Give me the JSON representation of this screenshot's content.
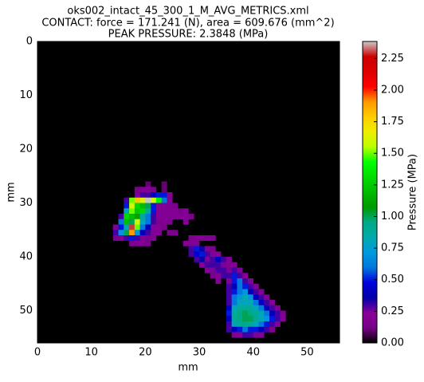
{
  "chart_data": {
    "type": "heatmap",
    "title": "oks002_intact_45_300_1_M_AVG_METRICS.xml",
    "subtitle": "CONTACT: force = 171.241 (N), area = 609.676 (mm^2)",
    "annotation": "PEAK PRESSURE: 2.3848 (MPa)",
    "x_label": "mm",
    "y_label": "mm",
    "xlim": [
      0,
      56
    ],
    "ylim": [
      56,
      0
    ],
    "xticks": [
      0,
      10,
      20,
      30,
      40,
      50
    ],
    "yticks": [
      0,
      10,
      20,
      30,
      40,
      50
    ],
    "colormap": "nipy_spectral",
    "colorbar": {
      "label": "Pressure (MPa)",
      "lim": [
        0,
        2.3848
      ],
      "ticks": [
        {
          "value": 0,
          "label": "0.00"
        },
        {
          "value": 0.25,
          "label": "0.25"
        },
        {
          "value": 0.5,
          "label": "0.50"
        },
        {
          "value": 0.75,
          "label": "0.75"
        },
        {
          "value": 1,
          "label": "1.00"
        },
        {
          "value": 1.25,
          "label": "1.25"
        },
        {
          "value": 1.5,
          "label": "1.50"
        },
        {
          "value": 1.75,
          "label": "1.75"
        },
        {
          "value": 2,
          "label": "2.00"
        },
        {
          "value": 2.25,
          "label": "2.25"
        }
      ]
    },
    "cells": [
      [
        20,
        26,
        0.1
      ],
      [
        23,
        26,
        0.1
      ],
      [
        18,
        27,
        0.15
      ],
      [
        19,
        27,
        0.2
      ],
      [
        20,
        27,
        0.2
      ],
      [
        21,
        27,
        0.15
      ],
      [
        23,
        27,
        0.1
      ],
      [
        18,
        28,
        0.25
      ],
      [
        19,
        28,
        0.3
      ],
      [
        20,
        28,
        0.3
      ],
      [
        21,
        28,
        0.4
      ],
      [
        22,
        28,
        0.5
      ],
      [
        23,
        28,
        0.5
      ],
      [
        24,
        28,
        0.2
      ],
      [
        16,
        29,
        0.3
      ],
      [
        17,
        29,
        1.5
      ],
      [
        18,
        29,
        1.8
      ],
      [
        19,
        29,
        1.65
      ],
      [
        20,
        29,
        2.38
      ],
      [
        21,
        29,
        1.6
      ],
      [
        22,
        29,
        1.4
      ],
      [
        23,
        29,
        0.6
      ],
      [
        24,
        29,
        0.2
      ],
      [
        16,
        30,
        0.5
      ],
      [
        17,
        30,
        1.6
      ],
      [
        18,
        30,
        1.3
      ],
      [
        19,
        30,
        1.2
      ],
      [
        20,
        30,
        1.0
      ],
      [
        21,
        30,
        0.5
      ],
      [
        22,
        30,
        0.2
      ],
      [
        23,
        30,
        0.2
      ],
      [
        24,
        30,
        0.2
      ],
      [
        25,
        30,
        0.15
      ],
      [
        16,
        31,
        0.8
      ],
      [
        17,
        31,
        1.5
      ],
      [
        18,
        31,
        1.25
      ],
      [
        19,
        31,
        1.3
      ],
      [
        20,
        31,
        0.9
      ],
      [
        21,
        31,
        0.5
      ],
      [
        22,
        31,
        0.2
      ],
      [
        23,
        31,
        0.2
      ],
      [
        24,
        31,
        0.2
      ],
      [
        25,
        31,
        0.2
      ],
      [
        26,
        31,
        0.15
      ],
      [
        27,
        31,
        0.2
      ],
      [
        15,
        32,
        0.3
      ],
      [
        16,
        32,
        1.3
      ],
      [
        17,
        32,
        1.2
      ],
      [
        18,
        32,
        1.1
      ],
      [
        19,
        32,
        0.9
      ],
      [
        20,
        32,
        0.6
      ],
      [
        21,
        32,
        0.3
      ],
      [
        22,
        32,
        0.2
      ],
      [
        23,
        32,
        0.2
      ],
      [
        24,
        32,
        0.2
      ],
      [
        25,
        32,
        0.2
      ],
      [
        26,
        32,
        0.2
      ],
      [
        27,
        32,
        0.2
      ],
      [
        28,
        32,
        0.15
      ],
      [
        15,
        33,
        0.6
      ],
      [
        16,
        33,
        1.2
      ],
      [
        17,
        33,
        1.0
      ],
      [
        18,
        33,
        1.6
      ],
      [
        19,
        33,
        0.8
      ],
      [
        20,
        33,
        0.6
      ],
      [
        21,
        33,
        0.3
      ],
      [
        22,
        33,
        0.15
      ],
      [
        23,
        33,
        0.2
      ],
      [
        24,
        33,
        0.15
      ],
      [
        27,
        33,
        0.2
      ],
      [
        14,
        34,
        0.2
      ],
      [
        15,
        34,
        0.5
      ],
      [
        16,
        34,
        0.8
      ],
      [
        17,
        34,
        2.3
      ],
      [
        18,
        34,
        1.5
      ],
      [
        19,
        34,
        0.6
      ],
      [
        20,
        34,
        0.4
      ],
      [
        21,
        34,
        0.2
      ],
      [
        22,
        34,
        0.2
      ],
      [
        23,
        34,
        0.15
      ],
      [
        14,
        35,
        0.3
      ],
      [
        15,
        35,
        0.7
      ],
      [
        16,
        35,
        1.0
      ],
      [
        17,
        35,
        1.9
      ],
      [
        18,
        35,
        0.7
      ],
      [
        19,
        35,
        0.4
      ],
      [
        20,
        35,
        0.3
      ],
      [
        21,
        35,
        0.2
      ],
      [
        22,
        35,
        0.2
      ],
      [
        24,
        35,
        0.15
      ],
      [
        25,
        35,
        0.15
      ],
      [
        14,
        36,
        0.15
      ],
      [
        15,
        36,
        0.2
      ],
      [
        16,
        36,
        0.3
      ],
      [
        17,
        36,
        0.5
      ],
      [
        18,
        36,
        0.3
      ],
      [
        19,
        36,
        0.2
      ],
      [
        20,
        36,
        0.15
      ],
      [
        21,
        36,
        0.2
      ],
      [
        28,
        36,
        0.2
      ],
      [
        29,
        36,
        0.2
      ],
      [
        30,
        36,
        0.2
      ],
      [
        31,
        36,
        0.2
      ],
      [
        32,
        36,
        0.2
      ],
      [
        17,
        37,
        0.15
      ],
      [
        18,
        37,
        0.2
      ],
      [
        19,
        37,
        0.2
      ],
      [
        20,
        37,
        0.15
      ],
      [
        27,
        37,
        0.2
      ],
      [
        28,
        37,
        0.2
      ],
      [
        29,
        37,
        0.2
      ],
      [
        28,
        38,
        0.3
      ],
      [
        29,
        38,
        0.5
      ],
      [
        30,
        38,
        0.35
      ],
      [
        31,
        38,
        0.2
      ],
      [
        32,
        38,
        0.15
      ],
      [
        28,
        39,
        0.3
      ],
      [
        29,
        39,
        0.45
      ],
      [
        30,
        39,
        0.5
      ],
      [
        31,
        39,
        0.3
      ],
      [
        32,
        39,
        0.2
      ],
      [
        33,
        39,
        0.2
      ],
      [
        29,
        40,
        0.3
      ],
      [
        30,
        40,
        0.35
      ],
      [
        31,
        40,
        0.25
      ],
      [
        32,
        40,
        0.3
      ],
      [
        33,
        40,
        0.4
      ],
      [
        34,
        40,
        0.3
      ],
      [
        35,
        40,
        0.2
      ],
      [
        30,
        41,
        0.2
      ],
      [
        31,
        41,
        0.3
      ],
      [
        32,
        41,
        0.3
      ],
      [
        33,
        41,
        0.3
      ],
      [
        34,
        41,
        0.25
      ],
      [
        35,
        41,
        0.2
      ],
      [
        36,
        41,
        0.2
      ],
      [
        31,
        42,
        0.2
      ],
      [
        32,
        42,
        0.25
      ],
      [
        33,
        42,
        0.3
      ],
      [
        34,
        42,
        0.3
      ],
      [
        35,
        42,
        0.25
      ],
      [
        36,
        42,
        0.3
      ],
      [
        37,
        42,
        0.2
      ],
      [
        32,
        43,
        0.15
      ],
      [
        33,
        43,
        0.2
      ],
      [
        34,
        43,
        0.3
      ],
      [
        35,
        43,
        0.3
      ],
      [
        36,
        43,
        0.5
      ],
      [
        37,
        43,
        0.3
      ],
      [
        38,
        43,
        0.2
      ],
      [
        33,
        44,
        0.2
      ],
      [
        35,
        44,
        0.2
      ],
      [
        36,
        44,
        0.5
      ],
      [
        37,
        44,
        0.6
      ],
      [
        38,
        44,
        0.3
      ],
      [
        39,
        44,
        0.2
      ],
      [
        35,
        45,
        0.3
      ],
      [
        36,
        45,
        0.4
      ],
      [
        37,
        45,
        0.6
      ],
      [
        38,
        45,
        0.5
      ],
      [
        39,
        45,
        0.3
      ],
      [
        40,
        45,
        0.2
      ],
      [
        35,
        46,
        0.3
      ],
      [
        36,
        46,
        0.5
      ],
      [
        37,
        46,
        0.6
      ],
      [
        38,
        46,
        0.7
      ],
      [
        39,
        46,
        0.4
      ],
      [
        40,
        46,
        0.3
      ],
      [
        41,
        46,
        0.2
      ],
      [
        35,
        47,
        0.3
      ],
      [
        36,
        47,
        0.6
      ],
      [
        37,
        47,
        0.7
      ],
      [
        38,
        47,
        0.8
      ],
      [
        39,
        47,
        0.7
      ],
      [
        40,
        47,
        0.4
      ],
      [
        41,
        47,
        0.3
      ],
      [
        42,
        47,
        0.2
      ],
      [
        35,
        48,
        0.3
      ],
      [
        36,
        48,
        0.6
      ],
      [
        37,
        48,
        0.8
      ],
      [
        38,
        48,
        0.8
      ],
      [
        39,
        48,
        0.8
      ],
      [
        40,
        48,
        0.6
      ],
      [
        41,
        48,
        0.4
      ],
      [
        42,
        48,
        0.3
      ],
      [
        43,
        48,
        0.2
      ],
      [
        35,
        49,
        0.4
      ],
      [
        36,
        49,
        0.8
      ],
      [
        37,
        49,
        0.9
      ],
      [
        38,
        49,
        0.9
      ],
      [
        39,
        49,
        0.9
      ],
      [
        40,
        49,
        0.8
      ],
      [
        41,
        49,
        0.6
      ],
      [
        42,
        49,
        0.4
      ],
      [
        43,
        49,
        0.3
      ],
      [
        44,
        49,
        0.2
      ],
      [
        35,
        50,
        0.5
      ],
      [
        36,
        50,
        0.9
      ],
      [
        37,
        50,
        0.95
      ],
      [
        38,
        50,
        1.0
      ],
      [
        39,
        50,
        0.95
      ],
      [
        40,
        50,
        0.9
      ],
      [
        41,
        50,
        0.8
      ],
      [
        42,
        50,
        0.6
      ],
      [
        43,
        50,
        0.4
      ],
      [
        44,
        50,
        0.3
      ],
      [
        45,
        50,
        0.2
      ],
      [
        35,
        51,
        0.4
      ],
      [
        36,
        51,
        0.9
      ],
      [
        37,
        51,
        0.95
      ],
      [
        38,
        51,
        1.0
      ],
      [
        39,
        51,
        1.0
      ],
      [
        40,
        51,
        0.9
      ],
      [
        41,
        51,
        0.8
      ],
      [
        42,
        51,
        0.7
      ],
      [
        43,
        51,
        0.5
      ],
      [
        44,
        51,
        0.3
      ],
      [
        45,
        51,
        0.2
      ],
      [
        35,
        52,
        0.3
      ],
      [
        36,
        52,
        0.8
      ],
      [
        37,
        52,
        0.9
      ],
      [
        38,
        52,
        0.95
      ],
      [
        39,
        52,
        0.9
      ],
      [
        40,
        52,
        0.8
      ],
      [
        41,
        52,
        0.6
      ],
      [
        42,
        52,
        0.5
      ],
      [
        43,
        52,
        0.3
      ],
      [
        44,
        52,
        0.2
      ],
      [
        35,
        53,
        0.3
      ],
      [
        36,
        53,
        0.4
      ],
      [
        37,
        53,
        0.5
      ],
      [
        38,
        53,
        0.6
      ],
      [
        39,
        53,
        0.5
      ],
      [
        40,
        53,
        0.5
      ],
      [
        41,
        53,
        0.4
      ],
      [
        42,
        53,
        0.3
      ],
      [
        43,
        53,
        0.2
      ],
      [
        36,
        54,
        0.2
      ],
      [
        37,
        54,
        0.2
      ],
      [
        38,
        54,
        0.3
      ],
      [
        39,
        54,
        0.3
      ],
      [
        40,
        54,
        0.2
      ],
      [
        41,
        54,
        0.2
      ]
    ]
  }
}
